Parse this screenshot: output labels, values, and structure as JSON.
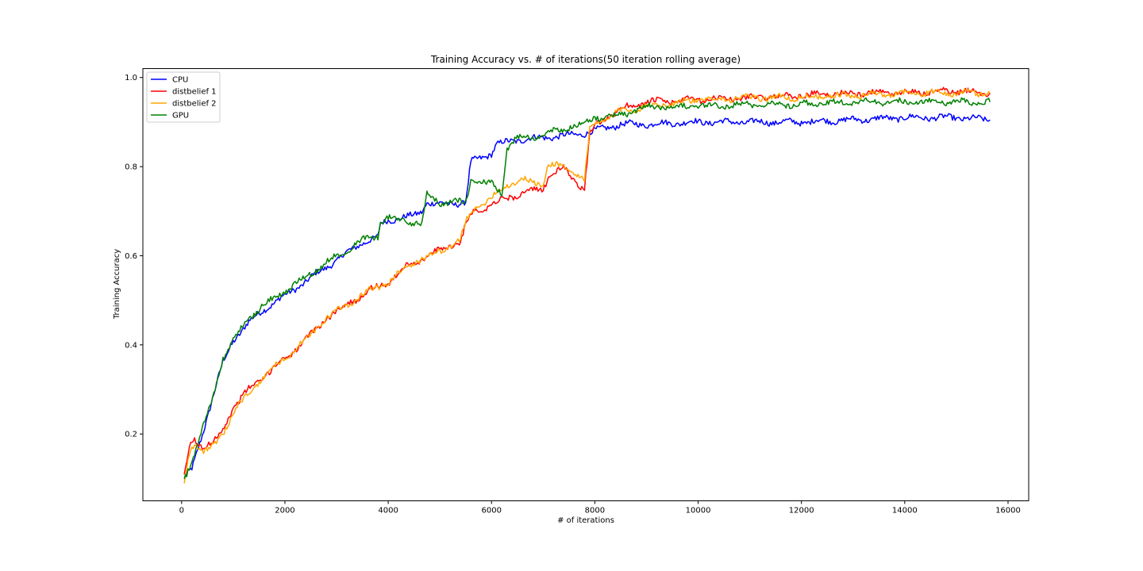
{
  "chart_data": {
    "type": "line",
    "title": "Training Accuracy vs. # of iterations(50 iteration rolling average)",
    "xlabel": "# of iterations",
    "ylabel": "Training Accuracy",
    "xlim": [
      -750,
      16400
    ],
    "ylim": [
      0.05,
      1.02
    ],
    "xticks": [
      0,
      2000,
      4000,
      6000,
      8000,
      10000,
      12000,
      14000,
      16000
    ],
    "xtick_labels": [
      "0",
      "2000",
      "4000",
      "6000",
      "8000",
      "10000",
      "12000",
      "14000",
      "16000"
    ],
    "yticks": [
      0.2,
      0.4,
      0.6,
      0.8,
      1.0
    ],
    "ytick_labels": [
      "0.2",
      "0.4",
      "0.6",
      "0.8",
      "1.0"
    ],
    "grid": false,
    "legend_position": "top-left",
    "series": [
      {
        "name": "CPU",
        "color": "#0000ff",
        "x": [
          50,
          200,
          400,
          600,
          800,
          1000,
          1300,
          1600,
          2000,
          2500,
          3000,
          3500,
          3800,
          3850,
          4000,
          4500,
          4650,
          4750,
          5000,
          5500,
          5600,
          6000,
          6100,
          6500,
          7000,
          7500,
          7800,
          8000,
          8500,
          9000,
          10000,
          11000,
          12000,
          13000,
          14000,
          15000,
          15650
        ],
        "values": [
          0.1,
          0.12,
          0.2,
          0.28,
          0.36,
          0.41,
          0.45,
          0.48,
          0.51,
          0.55,
          0.59,
          0.63,
          0.64,
          0.67,
          0.68,
          0.69,
          0.7,
          0.72,
          0.715,
          0.72,
          0.81,
          0.83,
          0.85,
          0.86,
          0.865,
          0.87,
          0.875,
          0.88,
          0.895,
          0.895,
          0.9,
          0.9,
          0.9,
          0.905,
          0.91,
          0.91,
          0.905
        ]
      },
      {
        "name": "distbelief 1",
        "color": "#ff0000",
        "x": [
          50,
          150,
          250,
          400,
          600,
          800,
          1000,
          1300,
          1600,
          2000,
          2400,
          2800,
          3200,
          3600,
          4000,
          4400,
          4800,
          5200,
          5400,
          5500,
          5600,
          6000,
          6300,
          6600,
          7000,
          7100,
          7400,
          7700,
          7800,
          7900,
          8000,
          8500,
          9000,
          10000,
          11000,
          12000,
          13000,
          14000,
          15000,
          15650
        ],
        "values": [
          0.1,
          0.17,
          0.19,
          0.17,
          0.18,
          0.21,
          0.26,
          0.3,
          0.33,
          0.37,
          0.41,
          0.46,
          0.49,
          0.52,
          0.54,
          0.58,
          0.6,
          0.625,
          0.63,
          0.67,
          0.695,
          0.715,
          0.73,
          0.74,
          0.75,
          0.78,
          0.795,
          0.76,
          0.75,
          0.87,
          0.89,
          0.93,
          0.945,
          0.95,
          0.955,
          0.96,
          0.965,
          0.965,
          0.97,
          0.965
        ]
      },
      {
        "name": "distbelief 2",
        "color": "#ffa500",
        "x": [
          50,
          150,
          250,
          400,
          600,
          800,
          1000,
          1300,
          1600,
          2000,
          2400,
          2800,
          3200,
          3600,
          4000,
          4400,
          4800,
          5200,
          5400,
          5500,
          5600,
          6000,
          6300,
          6600,
          7000,
          7100,
          7400,
          7700,
          7800,
          7900,
          8000,
          8500,
          9000,
          10000,
          11000,
          12000,
          13000,
          14000,
          15000,
          15650
        ],
        "values": [
          0.09,
          0.16,
          0.18,
          0.16,
          0.17,
          0.2,
          0.25,
          0.29,
          0.33,
          0.37,
          0.41,
          0.46,
          0.49,
          0.52,
          0.54,
          0.58,
          0.6,
          0.62,
          0.635,
          0.675,
          0.7,
          0.73,
          0.76,
          0.77,
          0.76,
          0.805,
          0.8,
          0.78,
          0.77,
          0.88,
          0.895,
          0.925,
          0.935,
          0.95,
          0.955,
          0.955,
          0.96,
          0.965,
          0.965,
          0.965
        ]
      },
      {
        "name": "GPU",
        "color": "#008000",
        "x": [
          50,
          200,
          400,
          600,
          800,
          1000,
          1300,
          1600,
          2000,
          2500,
          3000,
          3500,
          3800,
          3850,
          4000,
          4500,
          4650,
          4750,
          5000,
          5500,
          5600,
          6000,
          6200,
          6300,
          6500,
          7000,
          7500,
          7800,
          8000,
          8500,
          9000,
          10000,
          11000,
          12000,
          13000,
          14000,
          15000,
          15650
        ],
        "values": [
          0.1,
          0.14,
          0.21,
          0.28,
          0.37,
          0.41,
          0.46,
          0.49,
          0.52,
          0.56,
          0.6,
          0.635,
          0.645,
          0.68,
          0.685,
          0.675,
          0.67,
          0.74,
          0.72,
          0.72,
          0.77,
          0.76,
          0.74,
          0.84,
          0.865,
          0.87,
          0.89,
          0.895,
          0.91,
          0.915,
          0.935,
          0.935,
          0.94,
          0.94,
          0.945,
          0.945,
          0.945,
          0.945
        ]
      }
    ]
  }
}
